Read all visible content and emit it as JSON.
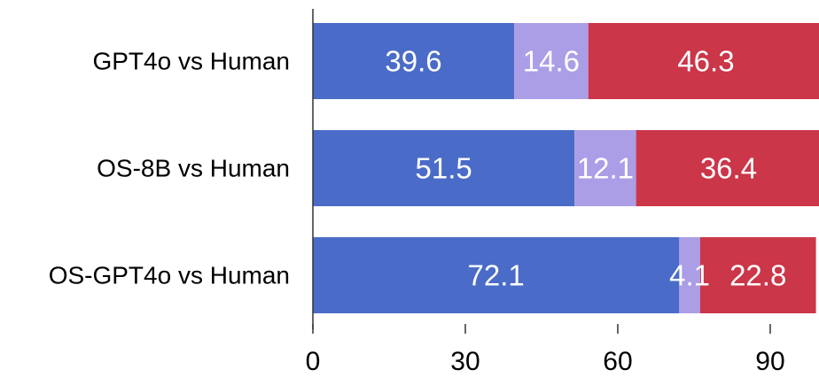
{
  "chart_data": {
    "type": "bar",
    "orientation": "horizontal",
    "stacked": true,
    "categories": [
      "GPT4o vs Human",
      "OS-8B vs Human",
      "OS-GPT4o vs Human"
    ],
    "series": [
      {
        "color": "#4a6cc8",
        "values": [
          39.6,
          51.5,
          72.1
        ]
      },
      {
        "color": "#ab9ee6",
        "values": [
          14.6,
          12.1,
          4.1
        ]
      },
      {
        "color": "#cb3649",
        "values": [
          46.3,
          36.4,
          22.8
        ]
      }
    ],
    "x_ticks": [
      0,
      30,
      60,
      90
    ],
    "xlim": [
      0,
      100
    ],
    "title": "",
    "xlabel": "",
    "ylabel": "",
    "grid": false,
    "legend": "none"
  }
}
